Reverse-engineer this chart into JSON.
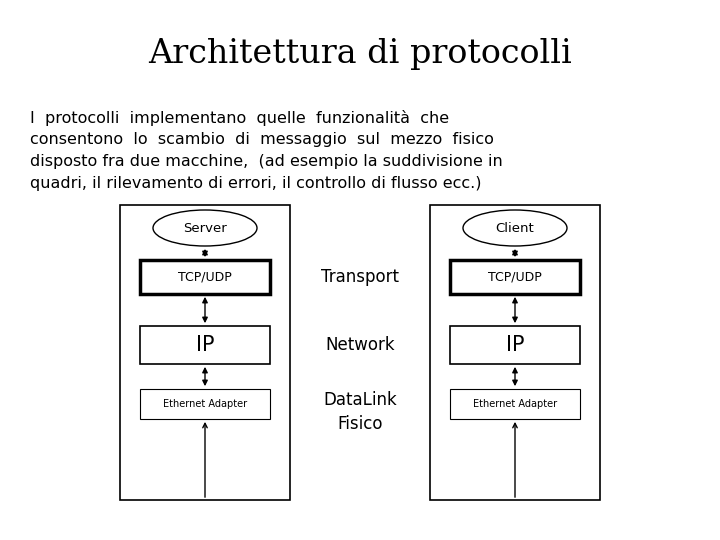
{
  "title": "Architettura di protocolli",
  "title_fontsize": 24,
  "title_font": "DejaVu Serif",
  "body_line1": "I  protocolli  implementano  quelle  funzionalità  che",
  "body_line2": "consentono  lo  scambio  di  messaggio  sul  mezzo  fisico",
  "body_line3": "disposto fra due macchine,  (ad esempio la suddivisione in",
  "body_line4": "quadri, il rilevamento di errori, il controllo di flusso ecc.)",
  "body_fontsize": 11.5,
  "body_font": "DejaVu Sans",
  "bg_color": "#ffffff",
  "label_transport": "Transport",
  "label_network": "Network",
  "label_datalink": "DataLink\nFisico",
  "label_server": "Server",
  "label_client": "Client",
  "label_tcp": "TCP/UDP",
  "label_ip": "IP",
  "label_eth": "Ethernet Adapter",
  "diagram_font": "DejaVu Sans",
  "diagram_label_font": "DejaVu Sans"
}
